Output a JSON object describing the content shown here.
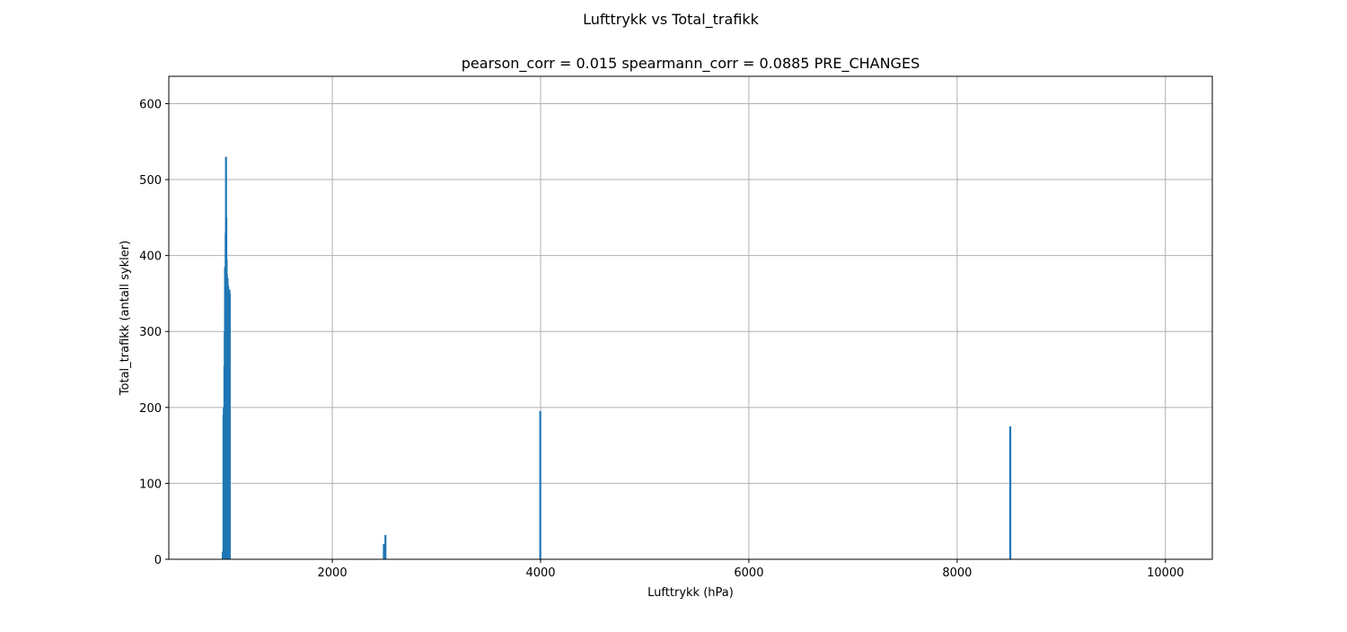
{
  "chart_data": {
    "type": "bar",
    "suptitle": "Lufttrykk vs Total_trafikk",
    "title": "pearson_corr = 0.015 spearmann_corr = 0.0885 PRE_CHANGES",
    "xlabel": "Lufttrykk (hPa)",
    "ylabel": "Total_trafikk (antall sykler)",
    "xlim": [
      430,
      10450
    ],
    "ylim": [
      0,
      636
    ],
    "xticks": [
      2000,
      4000,
      6000,
      8000,
      10000
    ],
    "yticks": [
      0,
      100,
      200,
      300,
      400,
      500,
      600
    ],
    "grid": true,
    "bar_color": "#1f77b4",
    "x": [
      948,
      955,
      958,
      961,
      964,
      967,
      970,
      973,
      976,
      979,
      982,
      985,
      988,
      991,
      994,
      997,
      1000,
      1003,
      1006,
      1009,
      1012,
      1015,
      2495,
      2510,
      3997,
      8510
    ],
    "values": [
      10,
      190,
      200,
      185,
      255,
      300,
      385,
      330,
      430,
      530,
      450,
      395,
      375,
      365,
      370,
      355,
      360,
      355,
      350,
      340,
      355,
      350,
      20,
      32,
      195,
      175
    ]
  }
}
